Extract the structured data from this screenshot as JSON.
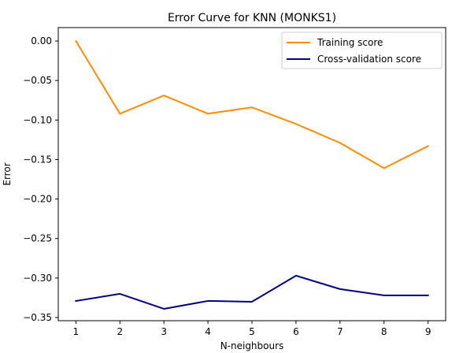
{
  "chart_data": {
    "type": "line",
    "title": "Error Curve for KNN (MONKS1)",
    "xlabel": "N-neighbours",
    "ylabel": "Error",
    "x": [
      1,
      2,
      3,
      4,
      5,
      6,
      7,
      8,
      9
    ],
    "xticks": [
      "1",
      "2",
      "3",
      "4",
      "5",
      "6",
      "7",
      "8",
      "9"
    ],
    "yticks": [
      0.0,
      -0.05,
      -0.1,
      -0.15,
      -0.2,
      -0.25,
      -0.3,
      -0.35
    ],
    "ytick_labels": [
      "0.00",
      "−0.05",
      "−0.10",
      "−0.15",
      "−0.20",
      "−0.25",
      "−0.30",
      "−0.35"
    ],
    "xlim": [
      0.6,
      9.4
    ],
    "ylim": [
      -0.354,
      0.017
    ],
    "grid": false,
    "legend_position": "top-right",
    "series": [
      {
        "name": "Training score",
        "color": "#ff8c00",
        "values": [
          0.0,
          -0.092,
          -0.069,
          -0.092,
          -0.084,
          -0.105,
          -0.129,
          -0.161,
          -0.133
        ]
      },
      {
        "name": "Cross-validation score",
        "color": "#000080",
        "values": [
          -0.329,
          -0.32,
          -0.339,
          -0.329,
          -0.33,
          -0.297,
          -0.314,
          -0.322,
          -0.322
        ]
      }
    ]
  }
}
